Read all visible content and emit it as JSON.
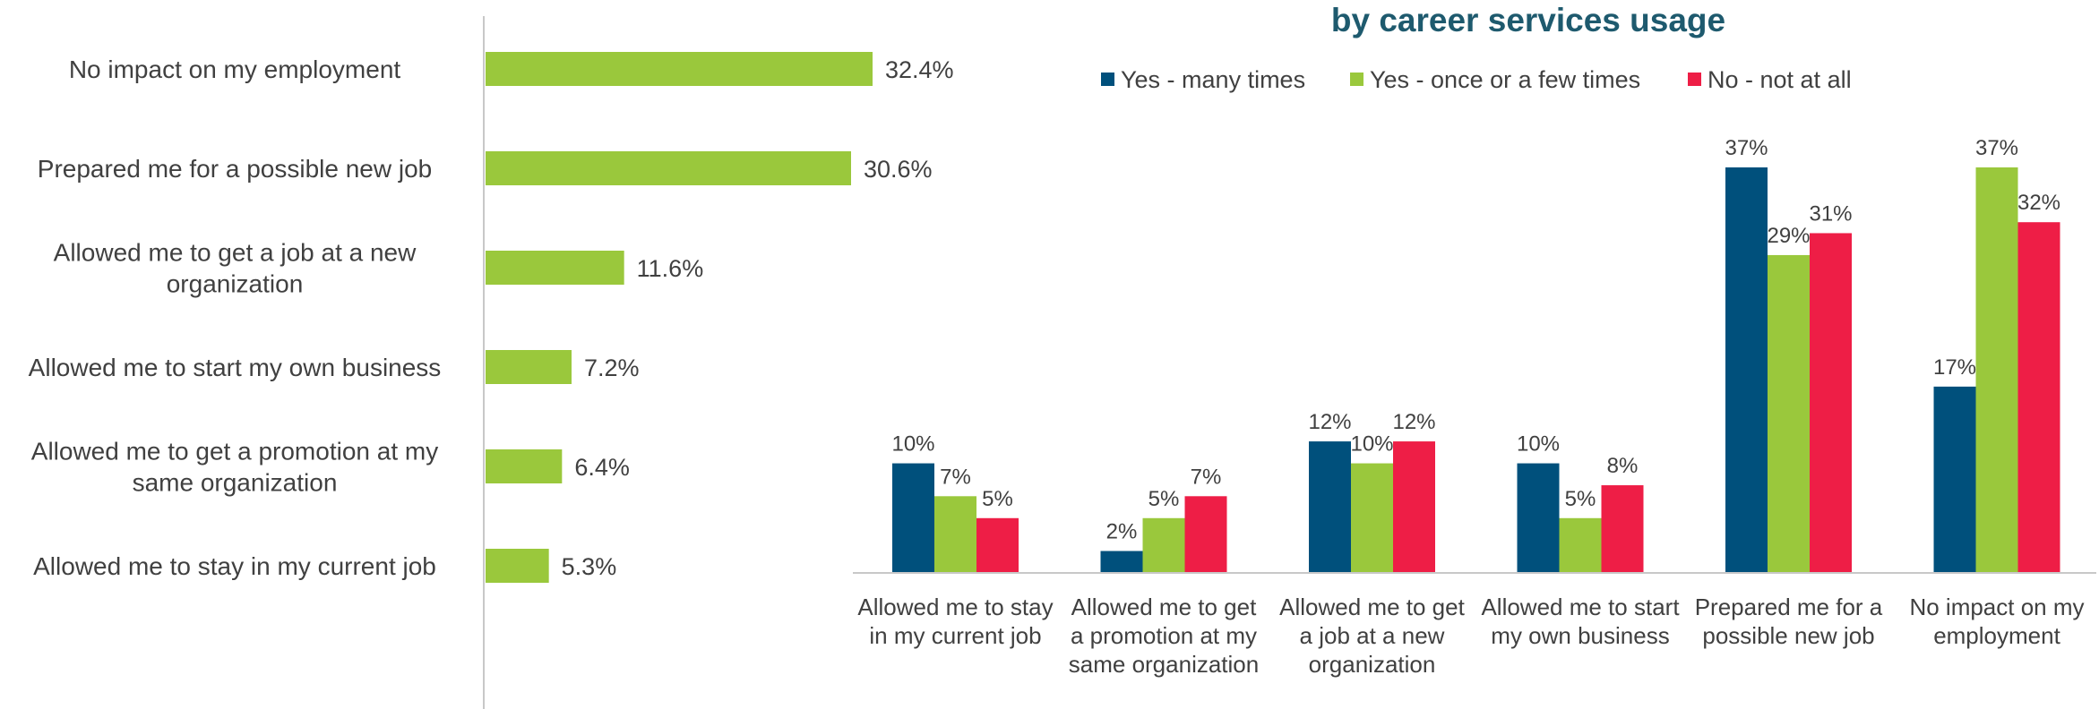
{
  "colors": {
    "green": "#9AC83C",
    "navy": "#00507C",
    "red": "#EE1E46",
    "axis": "#C8C8C8",
    "text": "#404040",
    "title": "#1E5A6E"
  },
  "chart_data": [
    {
      "type": "bar",
      "orientation": "horizontal",
      "categories": [
        "No impact on my employment",
        "Prepared me for a possible new job",
        "Allowed me to get a job at a new organization",
        "Allowed me to start my own business",
        "Allowed me to get a promotion at my same organization",
        "Allowed me to stay in my current job"
      ],
      "category_lines": [
        [
          "No impact on my employment"
        ],
        [
          "Prepared me for a possible new job"
        ],
        [
          "Allowed me to get a job at a new",
          "organization"
        ],
        [
          "Allowed me to start my own business"
        ],
        [
          "Allowed me to get a promotion at my",
          "same organization"
        ],
        [
          "Allowed me to stay in my current job"
        ]
      ],
      "values": [
        32.4,
        30.6,
        11.6,
        7.2,
        6.4,
        5.3
      ],
      "value_labels": [
        "32.4%",
        "30.6%",
        "11.6%",
        "7.2%",
        "6.4%",
        "5.3%"
      ],
      "color": "#9AC83C",
      "xlim": [
        0,
        35
      ],
      "grid": false
    },
    {
      "type": "bar",
      "orientation": "vertical",
      "title": "by career services usage",
      "legend_position": "top",
      "categories": [
        "Allowed me to stay in my current job",
        "Allowed me to get a promotion at my same organization",
        "Allowed me to get a job at a new organization",
        "Allowed me to start my own business",
        "Prepared me for a possible new job",
        "No impact on my employment"
      ],
      "category_lines": [
        [
          "Allowed me to stay",
          "in my current job"
        ],
        [
          "Allowed me to get",
          "a promotion at my",
          "same organization"
        ],
        [
          "Allowed me to get",
          "a job at a new",
          "organization"
        ],
        [
          "Allowed me to start",
          "my own business"
        ],
        [
          "Prepared me for a",
          "possible new job"
        ],
        [
          "No impact on my",
          "employment"
        ]
      ],
      "series": [
        {
          "name": "Yes - many times",
          "color": "#00507C",
          "values": [
            10,
            2,
            12,
            10,
            37,
            17
          ],
          "labels": [
            "10%",
            "2%",
            "12%",
            "10%",
            "37%",
            "17%"
          ]
        },
        {
          "name": "Yes - once or a few times",
          "color": "#9AC83C",
          "values": [
            7,
            5,
            10,
            5,
            29,
            37
          ],
          "labels": [
            "7%",
            "5%",
            "10%",
            "5%",
            "29%",
            "37%"
          ]
        },
        {
          "name": "No - not at all",
          "color": "#EE1E46",
          "values": [
            5,
            7,
            12,
            8,
            31,
            32
          ],
          "labels": [
            "5%",
            "7%",
            "12%",
            "8%",
            "31%",
            "32%"
          ]
        }
      ],
      "ylim": [
        0,
        40
      ],
      "grid": false
    }
  ]
}
